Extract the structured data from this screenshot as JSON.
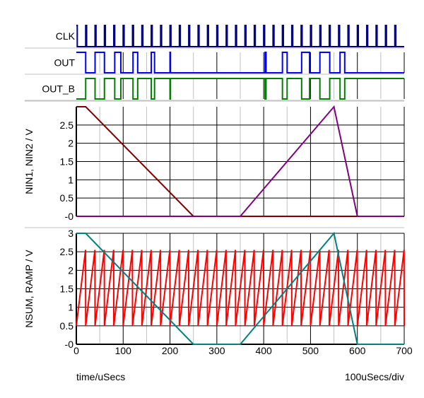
{
  "chart_data": [
    {
      "type": "digital",
      "x_range": [
        0,
        700
      ],
      "signals": [
        {
          "name": "CLK",
          "color": "#000080",
          "period": 20,
          "pulse_width": 2
        },
        {
          "name": "OUT",
          "color": "#0000ff",
          "high_intervals": [
            [
              0,
              20
            ],
            [
              40,
              60
            ],
            [
              82,
              95
            ],
            [
              121,
              131
            ],
            [
              160,
              167
            ],
            [
              200,
              201
            ],
            [
              403,
              405
            ],
            [
              440,
              450
            ],
            [
              481,
              498
            ],
            [
              520,
              541
            ],
            [
              563,
              573
            ]
          ]
        },
        {
          "name": "OUT_B",
          "color": "#008000",
          "inverse_of": "OUT"
        }
      ]
    },
    {
      "type": "line",
      "ylabel": "NIN1, NIN2 / V",
      "ylim": [
        0,
        3
      ],
      "xlim": [
        0,
        700
      ],
      "yticks": [
        "-0",
        "0.5",
        "1",
        "1.5",
        "2",
        "2.5"
      ],
      "ytick_values": [
        0,
        0.5,
        1,
        1.5,
        2,
        2.5
      ],
      "series": [
        {
          "color": "#800000",
          "x": [
            0,
            20,
            250,
            700
          ],
          "y": [
            3,
            3,
            0,
            0
          ]
        },
        {
          "color": "#800080",
          "x": [
            0,
            350,
            550,
            600,
            700
          ],
          "y": [
            0,
            0,
            3,
            0,
            0
          ]
        }
      ]
    },
    {
      "type": "line",
      "ylabel": "NSUM, RAMP / V",
      "ylim": [
        0,
        3
      ],
      "xlim": [
        0,
        700
      ],
      "yticks": [
        "-0",
        "0.5",
        "1",
        "1.5",
        "2",
        "2.5",
        "3"
      ],
      "ytick_values": [
        0,
        0.5,
        1,
        1.5,
        2,
        2.5,
        3
      ],
      "xticks": [
        "0",
        "100",
        "200",
        "300",
        "400",
        "500",
        "600",
        "700"
      ],
      "xtick_values": [
        0,
        100,
        200,
        300,
        400,
        500,
        600,
        700
      ],
      "series": [
        {
          "color": "#ff0000",
          "kind": "sawtooth",
          "period": 20,
          "min": 0.5,
          "max": 2.55
        },
        {
          "color": "#008080",
          "x": [
            0,
            20,
            250,
            350,
            550,
            600,
            700
          ],
          "y": [
            3,
            3,
            0,
            0,
            3,
            0,
            0
          ]
        }
      ]
    }
  ],
  "xlabel": "time/uSecs",
  "xscale_label": "100uSecs/div"
}
